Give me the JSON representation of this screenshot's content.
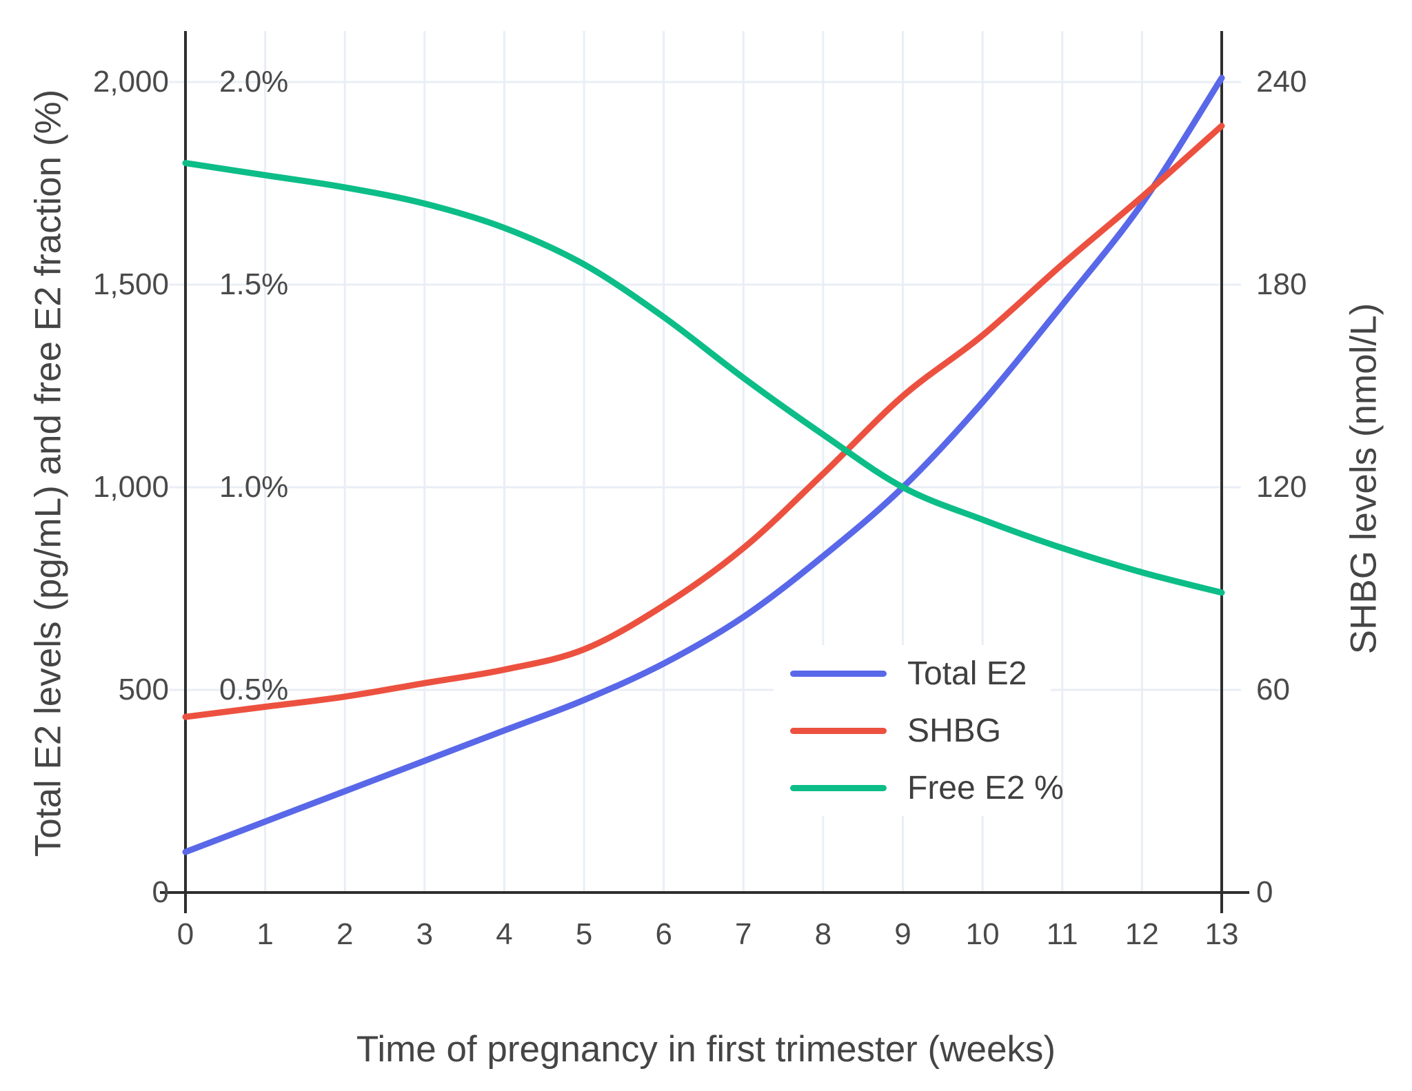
{
  "figure": {
    "x_axis": {
      "title": "Time of pregnancy in first trimester (weeks)",
      "ticks": [
        {
          "v": 0,
          "label": "0"
        },
        {
          "v": 1,
          "label": "1"
        },
        {
          "v": 2,
          "label": "2"
        },
        {
          "v": 3,
          "label": "3"
        },
        {
          "v": 4,
          "label": "4"
        },
        {
          "v": 5,
          "label": "5"
        },
        {
          "v": 6,
          "label": "6"
        },
        {
          "v": 7,
          "label": "7"
        },
        {
          "v": 8,
          "label": "8"
        },
        {
          "v": 9,
          "label": "9"
        },
        {
          "v": 10,
          "label": "10"
        },
        {
          "v": 11,
          "label": "11"
        },
        {
          "v": 12,
          "label": "12"
        },
        {
          "v": 13,
          "label": "13"
        }
      ]
    },
    "y_axis_left": {
      "title": "Total E2 levels (pg/mL) and free E2 fraction (%)",
      "ticks": [
        {
          "v": 0,
          "label": "0"
        },
        {
          "v": 500,
          "label": "500"
        },
        {
          "v": 1000,
          "label": "1,000"
        },
        {
          "v": 1500,
          "label": "1,500"
        },
        {
          "v": 2000,
          "label": "2,000"
        }
      ],
      "pct_ticks": [
        {
          "v": 500,
          "label": "0.5%"
        },
        {
          "v": 1000,
          "label": "1.0%"
        },
        {
          "v": 1500,
          "label": "1.5%"
        },
        {
          "v": 2000,
          "label": "2.0%"
        }
      ]
    },
    "y_axis_right": {
      "title": "SHBG levels (nmol/L)",
      "ticks": [
        {
          "v": 0,
          "label": "0"
        },
        {
          "v": 60,
          "label": "60"
        },
        {
          "v": 120,
          "label": "120"
        },
        {
          "v": 180,
          "label": "180"
        },
        {
          "v": 240,
          "label": "240"
        }
      ]
    },
    "legend": [
      {
        "label": "Total E2",
        "color": "#5968e8"
      },
      {
        "label": "SHBG",
        "color": "#ec5140"
      },
      {
        "label": "Free E2 %",
        "color": "#0cbd88"
      }
    ]
  },
  "chart_data": {
    "type": "line",
    "x": [
      0,
      1,
      2,
      3,
      4,
      5,
      6,
      7,
      8,
      9,
      10,
      11,
      12,
      13
    ],
    "xlim": [
      0,
      13
    ],
    "xlabel": "Time of pregnancy in first trimester (weeks)",
    "ylabel_left": "Total E2 levels (pg/mL) and free E2 fraction (%)",
    "ylabel_right": "SHBG levels (nmol/L)",
    "ylim_left": [
      0,
      2000
    ],
    "ylim_right": [
      0,
      240
    ],
    "ylim_percent": [
      0,
      2.0
    ],
    "grid": true,
    "legend_position": "inside lower-right",
    "series": [
      {
        "name": "Total E2",
        "axis": "left",
        "units": "pg/mL",
        "color": "#5968e8",
        "values": [
          100,
          175,
          250,
          325,
          400,
          475,
          565,
          680,
          830,
          1000,
          1210,
          1450,
          1700,
          2010
        ]
      },
      {
        "name": "SHBG",
        "axis": "right",
        "units": "nmol/L",
        "color": "#ec5140",
        "values": [
          52,
          55,
          58,
          62,
          66,
          72,
          85,
          102,
          124,
          147,
          165,
          186,
          206,
          227
        ]
      },
      {
        "name": "Free E2 %",
        "axis": "percent",
        "units": "%",
        "color": "#0cbd88",
        "values": [
          1.8,
          1.77,
          1.74,
          1.7,
          1.64,
          1.55,
          1.42,
          1.27,
          1.13,
          1.0,
          0.92,
          0.85,
          0.79,
          0.74
        ]
      }
    ]
  },
  "style": {
    "grid_color": "#e9eef6",
    "spine_color": "#2e2e2e",
    "text_color": "#4a4a4a",
    "background": "#ffffff"
  }
}
